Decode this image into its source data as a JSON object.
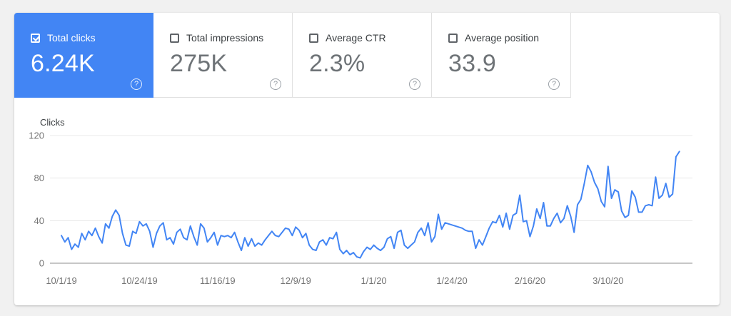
{
  "cards": [
    {
      "label": "Total clicks",
      "value": "6.24K",
      "selected": true
    },
    {
      "label": "Total impressions",
      "value": "275K",
      "selected": false
    },
    {
      "label": "Average CTR",
      "value": "2.3%",
      "selected": false
    },
    {
      "label": "Average position",
      "value": "33.9",
      "selected": false
    }
  ],
  "icons": {
    "help_glyph": "?"
  },
  "colors": {
    "accent_blue": "#4285f4",
    "page_background": "#f1f1f1",
    "card_background": "#ffffff",
    "tab_border": "#e0e0e0",
    "grid_line": "#e8e8e8",
    "zero_line": "#8f8f8f",
    "tick_text": "#757575"
  },
  "chart_data": {
    "type": "line",
    "ylabel": "Clicks",
    "series_name": "Total clicks",
    "line_color": "#4285f4",
    "ylim": [
      0,
      120
    ],
    "yticks": [
      0,
      40,
      80,
      120
    ],
    "grid": true,
    "legend_position": "none",
    "xtick_labels": [
      "10/1/19",
      "10/24/19",
      "11/16/19",
      "12/9/19",
      "1/1/20",
      "1/24/20",
      "2/16/20",
      "3/10/20"
    ],
    "xtick_day_index": [
      0,
      23,
      46,
      69,
      92,
      115,
      138,
      161
    ],
    "x_is_daily_from": "10/1/19",
    "values": [
      26,
      20,
      24,
      13,
      18,
      15,
      28,
      22,
      30,
      26,
      33,
      25,
      19,
      37,
      33,
      44,
      50,
      45,
      28,
      17,
      16,
      30,
      28,
      39,
      35,
      37,
      30,
      15,
      28,
      35,
      38,
      22,
      24,
      18,
      29,
      32,
      24,
      22,
      35,
      25,
      17,
      37,
      33,
      20,
      24,
      29,
      17,
      26,
      25,
      26,
      24,
      29,
      20,
      12,
      24,
      16,
      23,
      16,
      19,
      17,
      22,
      26,
      30,
      26,
      25,
      29,
      33,
      32,
      26,
      34,
      31,
      24,
      28,
      17,
      13,
      12,
      20,
      22,
      17,
      24,
      23,
      29,
      13,
      9,
      12,
      8,
      10,
      6,
      5,
      11,
      15,
      13,
      17,
      14,
      12,
      15,
      23,
      25,
      14,
      29,
      31,
      17,
      14,
      17,
      20,
      29,
      33,
      26,
      38,
      20,
      25,
      46,
      32,
      38,
      37,
      36,
      35,
      34,
      33,
      31,
      30,
      30,
      14,
      22,
      17,
      25,
      33,
      39,
      38,
      45,
      34,
      47,
      32,
      45,
      47,
      64,
      39,
      40,
      25,
      35,
      51,
      42,
      57,
      35,
      35,
      42,
      47,
      38,
      42,
      54,
      44,
      29,
      55,
      60,
      75,
      92,
      86,
      76,
      70,
      58,
      53,
      91,
      61,
      69,
      67,
      49,
      43,
      45,
      68,
      62,
      48,
      48,
      54,
      55,
      54,
      81,
      61,
      64,
      75,
      62,
      65,
      100,
      105
    ]
  }
}
